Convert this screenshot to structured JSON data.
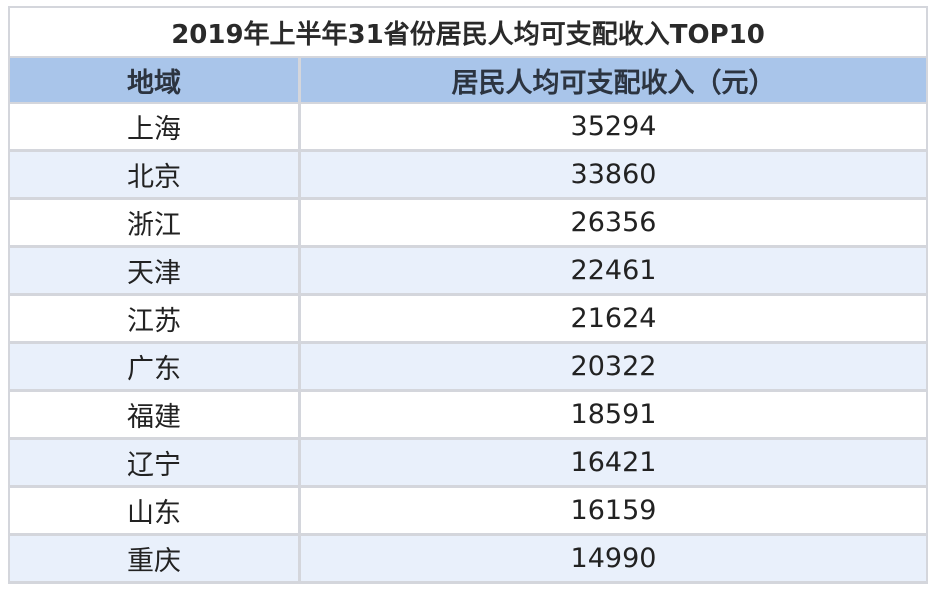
{
  "title": "2019年上半年31省份居民人均可支配收入TOP10",
  "table": {
    "header": [
      "地域",
      "居民人均可支配收入（元）"
    ],
    "rows": [
      [
        "上海",
        35294
      ],
      [
        "北京",
        33860
      ],
      [
        "浙江",
        26356
      ],
      [
        "天津",
        22461
      ],
      [
        "江苏",
        21624
      ],
      [
        "广东",
        20322
      ],
      [
        "福建",
        18591
      ],
      [
        "辽宁",
        16421
      ],
      [
        "山东",
        16159
      ],
      [
        "重庆",
        14990
      ]
    ]
  }
}
